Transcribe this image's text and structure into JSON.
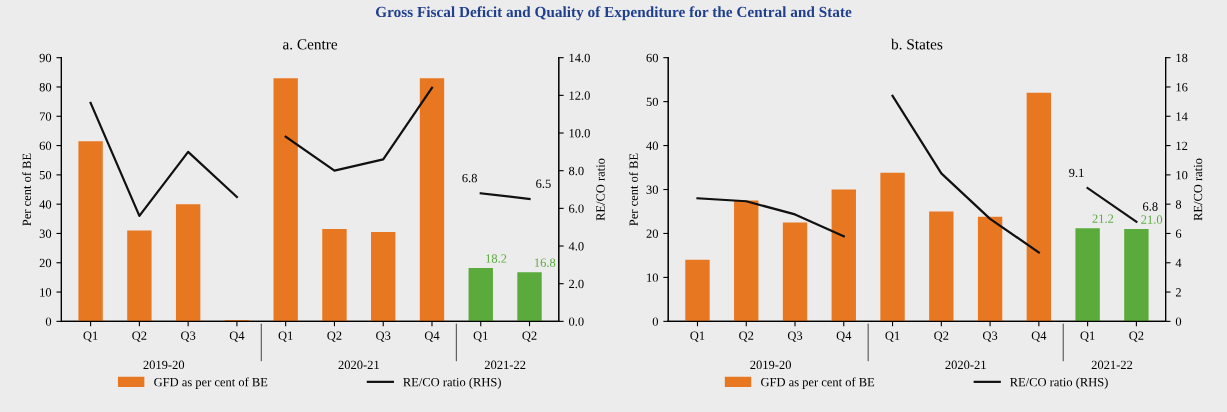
{
  "chart_data": [
    {
      "type": "bar",
      "title": "Gross Fiscal Deficit and Quality of Expenditure for the Central and State",
      "subtitle": "a. Centre",
      "ylabel": "Per cent of BE",
      "y2label": "RE/CO ratio",
      "categories": [
        "Q1",
        "Q2",
        "Q3",
        "Q4",
        "Q1",
        "Q2",
        "Q3",
        "Q4",
        "Q1",
        "Q2"
      ],
      "annotations": [
        "2019-20",
        "2020-21",
        "2021-22"
      ],
      "series": [
        {
          "name": "GFD as per cent of BE",
          "color": "#e87722",
          "colors": [
            "#e87722",
            "#e87722",
            "#e87722",
            "#e87722",
            "#e87722",
            "#e87722",
            "#e87722",
            "#e87722",
            "#5aaa3c",
            "#5aaa3c"
          ],
          "values": [
            61.5,
            31,
            40,
            0.5,
            83,
            31.5,
            30.5,
            83,
            18.2,
            16.8
          ],
          "value_labels": [
            null,
            null,
            null,
            null,
            null,
            null,
            null,
            null,
            "18.2",
            "16.8"
          ]
        },
        {
          "name": "RE/CO ratio (RHS)",
          "type": "line",
          "axis": "y2",
          "color": "#111111",
          "values": [
            11.6,
            5.6,
            9.0,
            6.6,
            null,
            null,
            null,
            null,
            null,
            null
          ]
        },
        {
          "type": "line",
          "axis": "y2",
          "color": "#111111",
          "values": [
            null,
            null,
            null,
            null,
            9.8,
            8.0,
            8.6,
            12.4,
            null,
            null
          ]
        },
        {
          "type": "line",
          "axis": "y2",
          "color": "#111111",
          "values": [
            null,
            null,
            null,
            null,
            null,
            null,
            null,
            null,
            6.8,
            6.5
          ],
          "value_labels": [
            null,
            null,
            null,
            null,
            null,
            null,
            null,
            null,
            "6.8",
            "6.5"
          ]
        }
      ],
      "ylim": [
        0,
        90
      ],
      "yticks": [
        0,
        10,
        20,
        30,
        40,
        50,
        60,
        70,
        80,
        90
      ],
      "y2lim": [
        0,
        14
      ],
      "y2ticks": [
        {
          "value": 0,
          "label": "0.0"
        },
        {
          "value": 2,
          "label": "2.0"
        },
        {
          "value": 4,
          "label": "4.0"
        },
        {
          "value": 6,
          "label": "6.0"
        },
        {
          "value": 8,
          "label": "8.0"
        },
        {
          "value": 10,
          "label": "10.0"
        },
        {
          "value": 12,
          "label": "12.0"
        },
        {
          "value": 14,
          "label": "14.0"
        }
      ],
      "legend": "bottom",
      "grid": false
    },
    {
      "type": "bar",
      "subtitle": "b. States",
      "ylabel": "Per cent of BE",
      "y2label": "RE/CO ratio",
      "categories": [
        "Q1",
        "Q2",
        "Q3",
        "Q4",
        "Q1",
        "Q2",
        "Q3",
        "Q4",
        "Q1",
        "Q2"
      ],
      "annotations": [
        "2019-20",
        "2020-21",
        "2021-22"
      ],
      "series": [
        {
          "name": "GFD as per cent of BE",
          "color": "#e87722",
          "colors": [
            "#e87722",
            "#e87722",
            "#e87722",
            "#e87722",
            "#e87722",
            "#e87722",
            "#e87722",
            "#e87722",
            "#5aaa3c",
            "#5aaa3c"
          ],
          "values": [
            14,
            27.5,
            22.5,
            30,
            33.8,
            25,
            23.8,
            52,
            21.2,
            21.0
          ],
          "value_labels": [
            null,
            null,
            null,
            null,
            null,
            null,
            null,
            null,
            "21.2",
            "21.0"
          ]
        },
        {
          "name": "RE/CO ratio (RHS)",
          "type": "line",
          "axis": "y2",
          "color": "#111111",
          "values": [
            8.4,
            8.2,
            7.3,
            5.8,
            null,
            null,
            null,
            null,
            null,
            null
          ]
        },
        {
          "type": "line",
          "axis": "y2",
          "color": "#111111",
          "values": [
            null,
            null,
            null,
            null,
            15.4,
            10.1,
            7.0,
            4.7,
            null,
            null
          ]
        },
        {
          "type": "line",
          "axis": "y2",
          "color": "#111111",
          "values": [
            null,
            null,
            null,
            null,
            null,
            null,
            null,
            null,
            9.1,
            6.8
          ],
          "value_labels": [
            null,
            null,
            null,
            null,
            null,
            null,
            null,
            null,
            "9.1",
            "6.8"
          ]
        }
      ],
      "ylim": [
        0,
        60
      ],
      "yticks": [
        0,
        10,
        20,
        30,
        40,
        50,
        60
      ],
      "y2lim": [
        0,
        18
      ],
      "y2ticks": [
        0,
        2,
        4,
        6,
        8,
        10,
        12,
        14,
        16,
        18
      ],
      "legend": "bottom",
      "grid": false
    }
  ]
}
